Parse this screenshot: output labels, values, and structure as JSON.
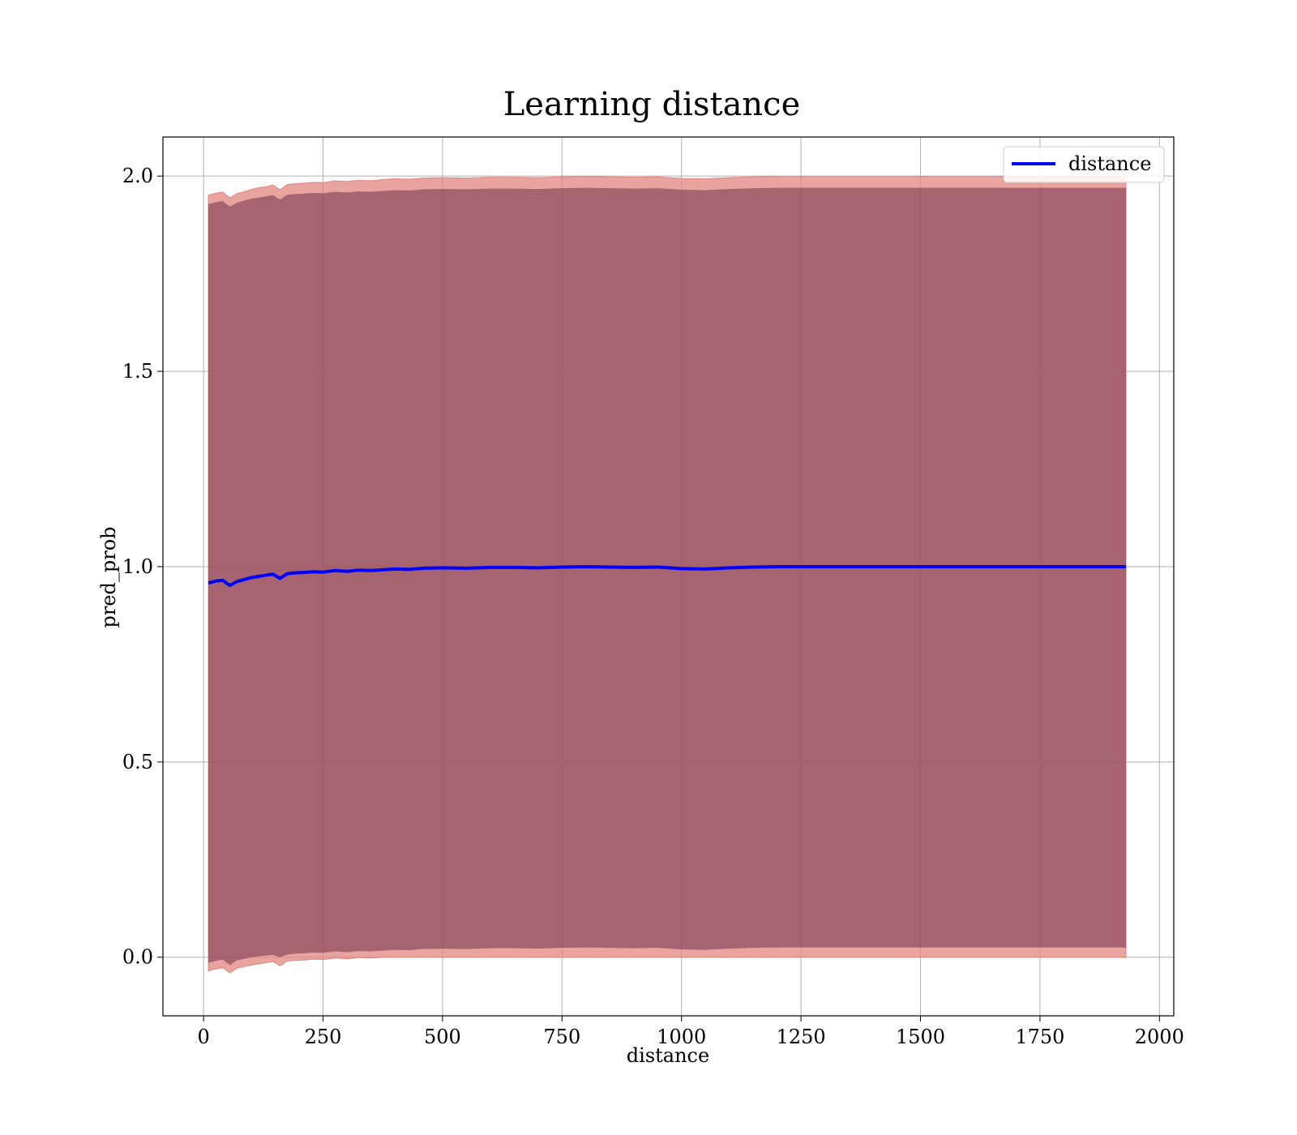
{
  "chart_data": {
    "type": "area",
    "title": "Learning distance",
    "xlabel": "distance",
    "ylabel": "pred_prob",
    "xlim": [
      -85,
      2030
    ],
    "ylim": [
      -0.15,
      2.1
    ],
    "xticks": [
      0,
      250,
      500,
      750,
      1000,
      1250,
      1500,
      1750,
      2000
    ],
    "xtick_labels": [
      "0",
      "250",
      "500",
      "750",
      "1000",
      "1250",
      "1500",
      "1750",
      "2000"
    ],
    "yticks": [
      0.0,
      0.5,
      1.0,
      1.5,
      2.0
    ],
    "ytick_labels": [
      "0.0",
      "0.5",
      "1.0",
      "1.5",
      "2.0"
    ],
    "grid": true,
    "legend": {
      "placement": "top-right",
      "entries": [
        {
          "label": "distance",
          "color": "#0000ff"
        }
      ]
    },
    "colors": {
      "line": "#0000ff",
      "inner_band": "#7a3e54",
      "outer_band": "#e2857f"
    },
    "series": [
      {
        "name": "distance",
        "x": [
          10,
          25,
          40,
          55,
          70,
          85,
          100,
          115,
          130,
          145,
          160,
          175,
          190,
          210,
          230,
          250,
          275,
          300,
          325,
          350,
          375,
          400,
          430,
          460,
          500,
          550,
          600,
          650,
          700,
          750,
          800,
          850,
          900,
          950,
          1000,
          1050,
          1100,
          1150,
          1200,
          1300,
          1400,
          1500,
          1600,
          1700,
          1800,
          1930
        ],
        "y": [
          0.958,
          0.963,
          0.965,
          0.952,
          0.962,
          0.967,
          0.972,
          0.975,
          0.978,
          0.981,
          0.97,
          0.982,
          0.984,
          0.985,
          0.987,
          0.986,
          0.99,
          0.988,
          0.991,
          0.99,
          0.992,
          0.994,
          0.993,
          0.996,
          0.997,
          0.996,
          0.998,
          0.998,
          0.997,
          0.999,
          1.0,
          0.999,
          0.998,
          0.999,
          0.995,
          0.994,
          0.997,
          0.999,
          1.0,
          1.0,
          1.0,
          1.0,
          1.0,
          1.0,
          1.0,
          1.0
        ]
      }
    ],
    "bands": [
      {
        "role": "outer",
        "lower": [
          -0.035,
          -0.03,
          -0.027,
          -0.04,
          -0.028,
          -0.024,
          -0.02,
          -0.017,
          -0.014,
          -0.011,
          -0.022,
          -0.01,
          -0.008,
          -0.007,
          -0.005,
          -0.006,
          -0.002,
          -0.004,
          -0.001,
          -0.002,
          0.0,
          0.0,
          0.0,
          0.0,
          0.0,
          0.0,
          0.0,
          0.0,
          0.0,
          0.0,
          0.0,
          0.0,
          0.0,
          0.0,
          0.0,
          0.0,
          0.0,
          0.0,
          0.0,
          0.0,
          0.0,
          0.0,
          0.0,
          0.0,
          0.0,
          0.0
        ],
        "upper": [
          1.951,
          1.956,
          1.959,
          1.944,
          1.955,
          1.96,
          1.966,
          1.97,
          1.973,
          1.977,
          1.965,
          1.978,
          1.98,
          1.982,
          1.984,
          1.983,
          1.988,
          1.986,
          1.989,
          1.988,
          1.991,
          1.993,
          1.992,
          1.995,
          1.996,
          1.995,
          1.997,
          1.997,
          1.996,
          1.998,
          1.999,
          1.998,
          1.997,
          1.998,
          1.994,
          1.993,
          1.996,
          1.998,
          1.999,
          1.999,
          1.999,
          1.999,
          1.999,
          1.999,
          1.999,
          1.999
        ]
      },
      {
        "role": "inner",
        "lower": [
          -0.014,
          -0.01,
          -0.006,
          -0.02,
          -0.008,
          -0.004,
          0.0,
          0.002,
          0.004,
          0.006,
          0.0,
          0.007,
          0.009,
          0.01,
          0.012,
          0.011,
          0.015,
          0.013,
          0.016,
          0.015,
          0.017,
          0.019,
          0.018,
          0.021,
          0.022,
          0.021,
          0.023,
          0.023,
          0.022,
          0.024,
          0.025,
          0.024,
          0.023,
          0.024,
          0.02,
          0.019,
          0.022,
          0.024,
          0.025,
          0.025,
          0.025,
          0.025,
          0.025,
          0.025,
          0.025,
          0.025
        ],
        "upper": [
          1.928,
          1.933,
          1.936,
          1.922,
          1.932,
          1.937,
          1.942,
          1.945,
          1.948,
          1.951,
          1.94,
          1.952,
          1.954,
          1.955,
          1.957,
          1.956,
          1.96,
          1.958,
          1.961,
          1.96,
          1.962,
          1.964,
          1.963,
          1.966,
          1.967,
          1.966,
          1.968,
          1.968,
          1.967,
          1.969,
          1.97,
          1.969,
          1.968,
          1.969,
          1.965,
          1.964,
          1.967,
          1.969,
          1.97,
          1.97,
          1.97,
          1.97,
          1.97,
          1.97,
          1.97,
          1.97
        ]
      }
    ]
  }
}
